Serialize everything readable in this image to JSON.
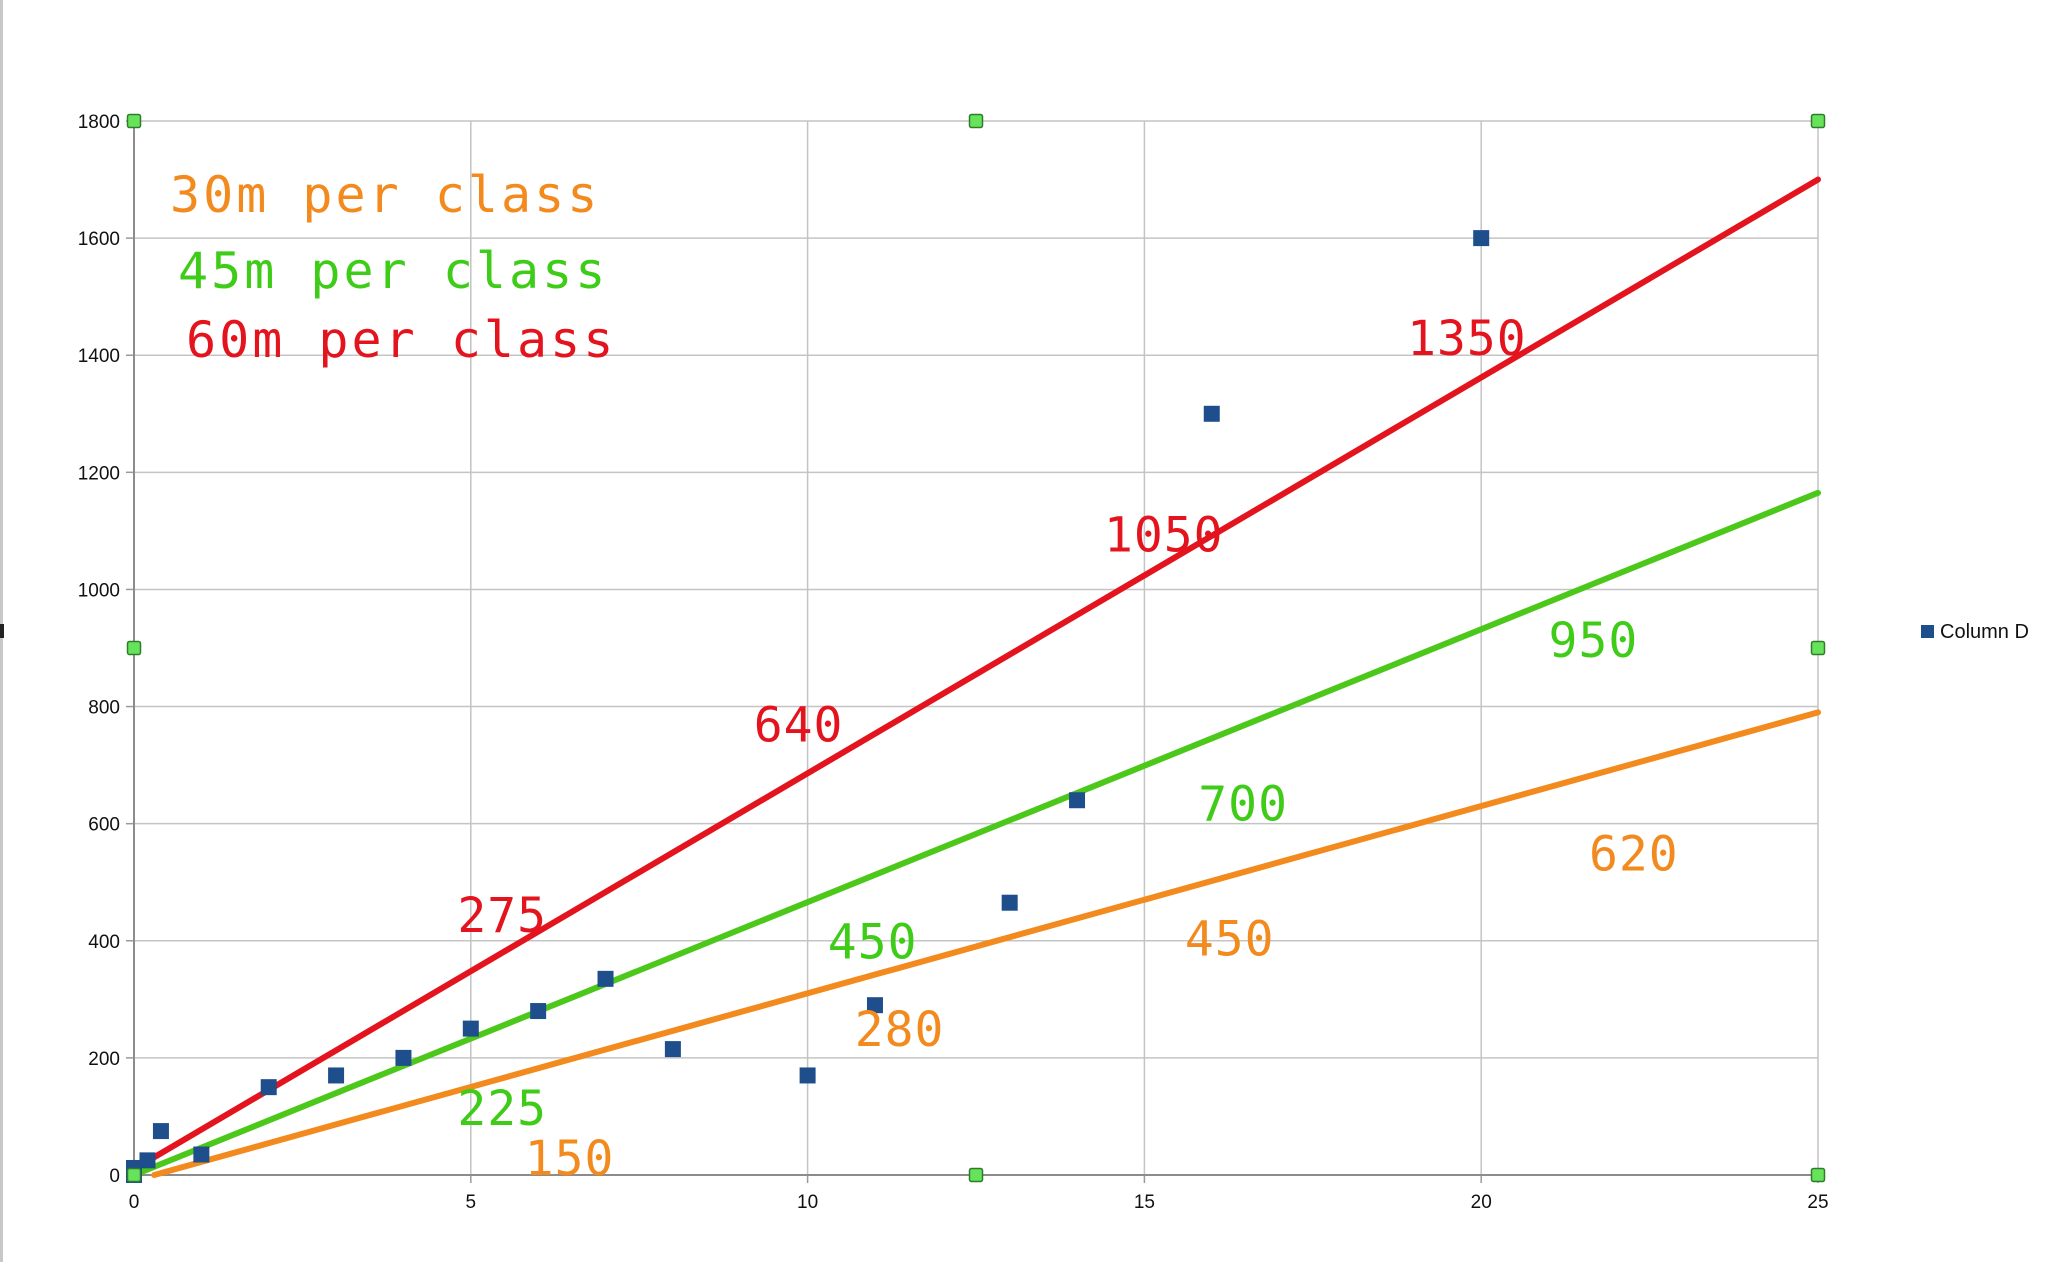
{
  "chart_data": {
    "type": "scatter",
    "title": "",
    "xlabel": "",
    "ylabel": "",
    "xlim": [
      0,
      25
    ],
    "ylim": [
      0,
      1800
    ],
    "x_ticks": [
      "0",
      "5",
      "10",
      "15",
      "20",
      "25"
    ],
    "y_ticks": [
      "0",
      "200",
      "400",
      "600",
      "800",
      "1000",
      "1200",
      "1400",
      "1600",
      "1800"
    ],
    "grid": true,
    "legend_position": "right",
    "series": [
      {
        "name": "Column D",
        "color": "#1f4e8c",
        "marker": "square",
        "points": [
          {
            "x": 0,
            "y": 0
          },
          {
            "x": 0,
            "y": 12
          },
          {
            "x": 0.2,
            "y": 25
          },
          {
            "x": 0.4,
            "y": 75
          },
          {
            "x": 1,
            "y": 35
          },
          {
            "x": 2,
            "y": 150
          },
          {
            "x": 3,
            "y": 170
          },
          {
            "x": 4,
            "y": 200
          },
          {
            "x": 5,
            "y": 250
          },
          {
            "x": 6,
            "y": 280
          },
          {
            "x": 7,
            "y": 335
          },
          {
            "x": 8,
            "y": 215
          },
          {
            "x": 10,
            "y": 170
          },
          {
            "x": 11,
            "y": 290
          },
          {
            "x": 13,
            "y": 465
          },
          {
            "x": 14,
            "y": 640
          },
          {
            "x": 16,
            "y": 1300
          },
          {
            "x": 20,
            "y": 1600
          }
        ]
      }
    ],
    "trend_lines": [
      {
        "color": "#f28a1e",
        "from": [
          0.3,
          0
        ],
        "to": [
          25,
          790
        ]
      },
      {
        "color": "#4cc81a",
        "from": [
          0,
          0
        ],
        "to": [
          25,
          1165
        ]
      },
      {
        "color": "#e3141e",
        "from": [
          0,
          10
        ],
        "to": [
          25,
          1700
        ]
      }
    ],
    "selection_handles": [
      {
        "x": 0,
        "y": 1800
      },
      {
        "x": 12.5,
        "y": 1800
      },
      {
        "x": 25,
        "y": 1800
      },
      {
        "x": 0,
        "y": 900
      },
      {
        "x": 25,
        "y": 900
      },
      {
        "x": 0,
        "y": 0
      },
      {
        "x": 12.5,
        "y": 0
      },
      {
        "x": 25,
        "y": 0
      }
    ],
    "handle_color": "#66e35a",
    "notes": [
      {
        "text": "30m per class",
        "color": "#f28a1e"
      },
      {
        "text": "45m per class",
        "color": "#3fcc18"
      },
      {
        "text": "60m per class",
        "color": "#e3141e"
      }
    ],
    "annotations": [
      {
        "text": "1350",
        "color": "#e3141e",
        "x": 18.9,
        "y": 1400
      },
      {
        "text": "1050",
        "color": "#e3141e",
        "x": 14.4,
        "y": 1065
      },
      {
        "text": "640",
        "color": "#e3141e",
        "x": 9.2,
        "y": 740
      },
      {
        "text": "275",
        "color": "#e3141e",
        "x": 4.8,
        "y": 415
      },
      {
        "text": "950",
        "color": "#3fcc18",
        "x": 21.0,
        "y": 885
      },
      {
        "text": "700",
        "color": "#3fcc18",
        "x": 15.8,
        "y": 605
      },
      {
        "text": "450",
        "color": "#3fcc18",
        "x": 10.3,
        "y": 370
      },
      {
        "text": "225",
        "color": "#3fcc18",
        "x": 4.8,
        "y": 85
      },
      {
        "text": "620",
        "color": "#f28a1e",
        "x": 21.6,
        "y": 520
      },
      {
        "text": "450",
        "color": "#f28a1e",
        "x": 15.6,
        "y": 375
      },
      {
        "text": "280",
        "color": "#f28a1e",
        "x": 10.7,
        "y": 220
      },
      {
        "text": "150",
        "color": "#f28a1e",
        "x": 5.8,
        "y": 0
      }
    ]
  }
}
